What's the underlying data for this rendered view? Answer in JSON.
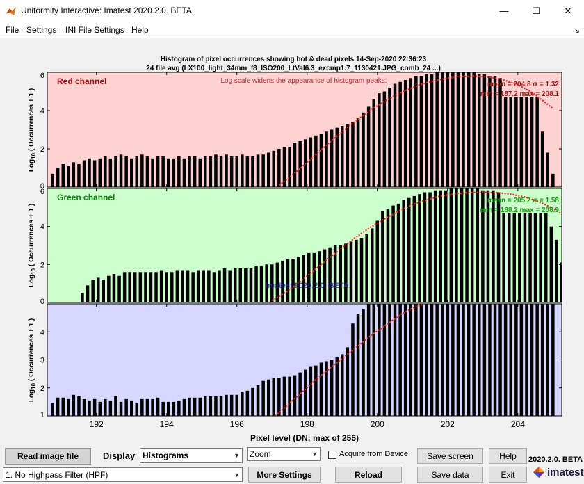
{
  "window": {
    "title": "Uniformity Interactive:  Imatest 2020.2.0. BETA",
    "minimize": "—",
    "maximize": "☐",
    "close": "✕"
  },
  "menu": {
    "items": [
      "File",
      "Settings",
      "INI File Settings",
      "Help"
    ],
    "dock_arrow": "↘"
  },
  "figure": {
    "title_line1": "Histogram of pixel occurrences showing hot & dead pixels    14-Sep-2020 22:36:23",
    "title_line2": "24 file avg  (LX100_light_34mm_f8_ISO200_LtVal6.3_excmp1.7_1130421.JPG_comb_24 ...)",
    "xlabel": "Pixel level (DN; max of 255)",
    "watermark": "Imatest 2020.2.0. BETA",
    "ylabel_pre": "Log",
    "ylabel_sub": "10",
    "ylabel_post": " ( Occurrences + 1 )"
  },
  "chart_data": [
    {
      "type": "bar",
      "name": "Red channel",
      "note": "Log scale widens the appearance of histogram peaks.",
      "stats_line1": "mean = 204.8   σ = 1.32",
      "stats_line2": "min = 187.2   max = 208.1",
      "xlim": [
        190.6,
        205.25
      ],
      "ylim": [
        0,
        6
      ],
      "yticks": [
        "0",
        "2",
        "4",
        "6"
      ],
      "bg": "#ffd2d2",
      "label_color": "#b01010",
      "stats_color": "#b01010",
      "x": [
        190.75,
        190.9,
        191.05,
        191.2,
        191.35,
        191.5,
        191.65,
        191.8,
        191.95,
        192.1,
        192.25,
        192.4,
        192.55,
        192.7,
        192.85,
        193.0,
        193.15,
        193.3,
        193.45,
        193.6,
        193.75,
        193.9,
        194.05,
        194.2,
        194.35,
        194.5,
        194.65,
        194.8,
        194.95,
        195.1,
        195.25,
        195.4,
        195.55,
        195.7,
        195.85,
        196.0,
        196.15,
        196.3,
        196.45,
        196.6,
        196.75,
        196.9,
        197.05,
        197.2,
        197.35,
        197.5,
        197.65,
        197.8,
        197.95,
        198.1,
        198.25,
        198.4,
        198.55,
        198.7,
        198.85,
        199.0,
        199.15,
        199.3,
        199.45,
        199.6,
        199.75,
        199.9,
        200.05,
        200.2,
        200.35,
        200.5,
        200.65,
        200.8,
        200.95,
        201.1,
        201.25,
        201.4,
        201.55,
        201.7,
        201.85,
        202.0,
        202.15,
        202.3,
        202.45,
        202.6,
        202.75,
        202.9,
        203.05,
        203.2,
        203.35,
        203.5,
        203.65,
        203.8,
        203.95,
        204.1,
        204.25,
        204.4,
        204.55,
        204.7,
        204.85,
        205.0
      ],
      "values": [
        0.7,
        1.0,
        1.2,
        1.1,
        1.3,
        1.2,
        1.4,
        1.5,
        1.4,
        1.5,
        1.6,
        1.5,
        1.6,
        1.7,
        1.6,
        1.5,
        1.6,
        1.7,
        1.6,
        1.5,
        1.6,
        1.6,
        1.5,
        1.5,
        1.6,
        1.5,
        1.6,
        1.6,
        1.5,
        1.6,
        1.6,
        1.7,
        1.6,
        1.7,
        1.6,
        1.6,
        1.7,
        1.6,
        1.6,
        1.7,
        1.7,
        1.8,
        1.9,
        2.0,
        2.1,
        2.1,
        2.3,
        2.4,
        2.5,
        2.6,
        2.7,
        2.8,
        2.9,
        3.0,
        3.1,
        3.2,
        3.3,
        3.4,
        3.6,
        3.9,
        4.2,
        4.6,
        4.9,
        5.0,
        5.2,
        5.4,
        5.5,
        5.6,
        5.7,
        5.8,
        5.8,
        5.9,
        5.9,
        6.0,
        6.0,
        6.0,
        6.0,
        6.0,
        6.0,
        6.0,
        6.0,
        5.9,
        5.9,
        5.8,
        5.8,
        5.7,
        4.7,
        4.7,
        4.7,
        4.7,
        4.7,
        4.7,
        4.7,
        2.9,
        1.8,
        0.7
      ],
      "curve_x": [
        197.2,
        197.6,
        198.0,
        198.4,
        198.8,
        199.2,
        199.6,
        200.0,
        200.4,
        200.8,
        201.2,
        201.6,
        202.0,
        202.4,
        202.8,
        203.2,
        203.6,
        204.0,
        204.4,
        204.8,
        205.0
      ],
      "curve_y": [
        0.1,
        0.65,
        1.3,
        1.95,
        2.6,
        3.2,
        3.75,
        4.25,
        4.7,
        5.05,
        5.35,
        5.55,
        5.7,
        5.78,
        5.8,
        5.75,
        5.6,
        5.35,
        4.95,
        4.4,
        4.1
      ]
    },
    {
      "type": "bar",
      "name": "Green channel",
      "note": "",
      "stats_line1": "mean = 205.2   σ = 1.58",
      "stats_line2": "min = 188.2   max = 208.9",
      "xlim": [
        190.6,
        205.25
      ],
      "ylim": [
        0,
        6
      ],
      "yticks": [
        "0",
        "2",
        "4",
        "6"
      ],
      "bg": "#ccffcc",
      "label_color": "#108010",
      "stats_color": "#10a010",
      "x": [
        191.6,
        191.75,
        191.9,
        192.05,
        192.2,
        192.35,
        192.5,
        192.65,
        192.8,
        192.95,
        193.1,
        193.25,
        193.4,
        193.55,
        193.7,
        193.85,
        194.0,
        194.15,
        194.3,
        194.45,
        194.6,
        194.75,
        194.9,
        195.05,
        195.2,
        195.35,
        195.5,
        195.65,
        195.8,
        195.95,
        196.1,
        196.25,
        196.4,
        196.55,
        196.7,
        196.85,
        197.0,
        197.15,
        197.3,
        197.45,
        197.6,
        197.75,
        197.9,
        198.05,
        198.2,
        198.35,
        198.5,
        198.65,
        198.8,
        198.95,
        199.1,
        199.25,
        199.4,
        199.55,
        199.7,
        199.85,
        200.0,
        200.15,
        200.3,
        200.45,
        200.6,
        200.75,
        200.9,
        201.05,
        201.2,
        201.35,
        201.5,
        201.65,
        201.8,
        201.95,
        202.1,
        202.25,
        202.4,
        202.55,
        202.7,
        202.85,
        203.0,
        203.15,
        203.3,
        203.45,
        203.6,
        203.75,
        203.9,
        204.05,
        204.2,
        204.35,
        204.5,
        204.65,
        204.8,
        204.95,
        205.1,
        205.25
      ],
      "values": [
        0.5,
        0.9,
        1.2,
        1.3,
        1.2,
        1.4,
        1.5,
        1.4,
        1.6,
        1.6,
        1.6,
        1.6,
        1.6,
        1.6,
        1.6,
        1.7,
        1.6,
        1.6,
        1.7,
        1.7,
        1.7,
        1.6,
        1.7,
        1.7,
        1.7,
        1.6,
        1.7,
        1.8,
        1.7,
        1.8,
        1.8,
        1.8,
        1.8,
        1.9,
        1.9,
        2.0,
        2.0,
        2.1,
        2.2,
        2.3,
        2.3,
        2.4,
        2.5,
        2.6,
        2.6,
        2.7,
        2.8,
        2.9,
        3.0,
        3.0,
        3.1,
        3.2,
        3.3,
        3.4,
        3.6,
        3.9,
        4.3,
        4.8,
        4.9,
        5.1,
        5.2,
        5.4,
        5.5,
        5.6,
        5.7,
        5.8,
        5.8,
        5.9,
        5.9,
        5.9,
        6.0,
        6.0,
        6.0,
        6.0,
        6.0,
        6.0,
        5.9,
        5.9,
        5.9,
        5.8,
        4.7,
        4.7,
        4.7,
        4.7,
        4.7,
        4.7,
        4.7,
        4.7,
        4.7,
        4.0,
        3.3,
        2.1
      ],
      "curve_x": [
        197.0,
        197.4,
        197.8,
        198.2,
        198.6,
        199.0,
        199.4,
        199.8,
        200.2,
        200.6,
        201.0,
        201.4,
        201.8,
        202.2,
        202.6,
        203.0,
        203.4,
        203.8,
        204.2,
        204.6,
        205.0,
        205.25
      ],
      "curve_y": [
        0.1,
        0.55,
        1.1,
        1.7,
        2.3,
        2.9,
        3.45,
        3.95,
        4.4,
        4.8,
        5.15,
        5.4,
        5.6,
        5.72,
        5.78,
        5.8,
        5.78,
        5.7,
        5.55,
        5.3,
        4.95,
        4.65
      ]
    },
    {
      "type": "bar",
      "name": "",
      "note": "",
      "stats_line1": "",
      "stats_line2": "",
      "xlim": [
        190.6,
        205.25
      ],
      "ylim": [
        1,
        5
      ],
      "yticks": [
        "1",
        "2",
        "3",
        "4"
      ],
      "bg": "#d6d6ff",
      "label_color": "#000080",
      "stats_color": "#000080",
      "x": [
        190.75,
        190.9,
        191.05,
        191.2,
        191.35,
        191.5,
        191.65,
        191.8,
        191.95,
        192.1,
        192.25,
        192.4,
        192.55,
        192.7,
        192.85,
        193.0,
        193.15,
        193.3,
        193.45,
        193.6,
        193.75,
        193.9,
        194.05,
        194.2,
        194.35,
        194.5,
        194.65,
        194.8,
        194.95,
        195.1,
        195.25,
        195.4,
        195.55,
        195.7,
        195.85,
        196.0,
        196.15,
        196.3,
        196.45,
        196.6,
        196.75,
        196.9,
        197.05,
        197.2,
        197.35,
        197.5,
        197.65,
        197.8,
        197.95,
        198.1,
        198.25,
        198.4,
        198.55,
        198.7,
        198.85,
        199.0,
        199.15,
        199.3,
        199.45,
        199.6,
        199.75,
        199.9,
        200.05,
        200.2,
        200.35,
        200.5,
        200.65,
        200.8,
        200.95,
        201.1,
        201.25,
        201.4,
        201.55,
        201.7,
        201.85,
        202.0,
        202.15,
        202.3,
        202.45,
        202.6,
        202.75,
        202.9,
        203.05,
        203.2,
        203.35,
        203.5,
        203.65,
        203.8,
        203.95,
        204.1,
        204.25,
        204.4,
        204.55,
        204.7,
        204.85,
        205.0
      ],
      "values": [
        1.45,
        1.65,
        1.65,
        1.6,
        1.75,
        1.7,
        1.6,
        1.55,
        1.6,
        1.5,
        1.6,
        1.55,
        1.7,
        1.5,
        1.6,
        1.55,
        1.45,
        1.6,
        1.6,
        1.6,
        1.65,
        1.5,
        1.5,
        1.5,
        1.55,
        1.6,
        1.65,
        1.65,
        1.65,
        1.7,
        1.7,
        1.7,
        1.7,
        1.75,
        1.75,
        1.75,
        1.85,
        1.9,
        2.0,
        2.1,
        2.25,
        2.3,
        2.35,
        2.35,
        2.4,
        2.4,
        2.45,
        2.55,
        2.65,
        2.75,
        2.8,
        2.9,
        2.95,
        3.0,
        3.1,
        3.2,
        3.45,
        4.3,
        4.65,
        4.8,
        5.0,
        5.0,
        5.0,
        5.0,
        5.0,
        5.0,
        5.0,
        5.0,
        5.0,
        5.0,
        5.0,
        5.0,
        5.0,
        5.0,
        5.0,
        5.0,
        5.0,
        5.0,
        5.0,
        5.0,
        5.0,
        5.0,
        5.0,
        5.0,
        5.0,
        5.0,
        5.0,
        5.0,
        5.0,
        5.0,
        5.0,
        5.0,
        5.0,
        5.0,
        5.0,
        5.0
      ],
      "curve_x": [
        197.1,
        197.5,
        197.9,
        198.3,
        198.7,
        199.1,
        199.5,
        199.9,
        200.3,
        200.7,
        201.0,
        201.3
      ],
      "curve_y": [
        1.0,
        1.45,
        1.9,
        2.35,
        2.75,
        3.15,
        3.55,
        3.95,
        4.3,
        4.65,
        4.85,
        5.0
      ]
    }
  ],
  "x_axis_ticks": [
    192,
    194,
    196,
    198,
    200,
    202,
    204
  ],
  "controls": {
    "read_image_file": "Read image file",
    "display_label": "Display",
    "display_value": "Histograms",
    "zoom_value": "Zoom",
    "acquire_label": "Acquire from Device",
    "save_screen": "Save screen",
    "help": "Help",
    "hpf_value": "1. No Highpass Filter (HPF)",
    "more_settings": "More Settings",
    "reload": "Reload",
    "save_data": "Save data",
    "exit": "Exit",
    "version": "2020.2.0. BETA",
    "logo_text": "imatest"
  },
  "colors": {
    "bar": "#000000",
    "curve": "#ff2020"
  }
}
